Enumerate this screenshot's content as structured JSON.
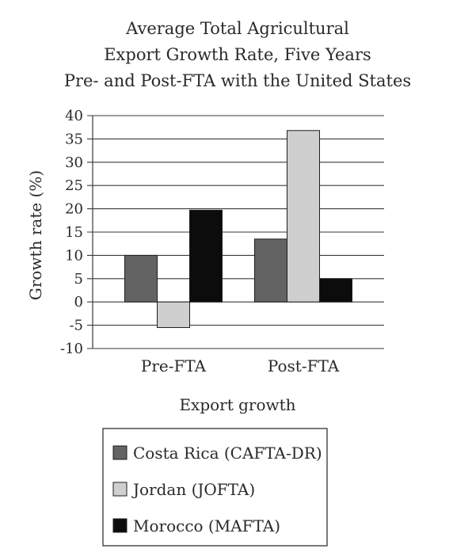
{
  "chart_data": {
    "type": "bar",
    "title": [
      "Average Total Agricultural",
      "Export Growth Rate, Five Years",
      "Pre- and Post-FTA with the United States"
    ],
    "xlabel": "Export growth",
    "ylabel": "Growth rate (%)",
    "categories": [
      "Pre-FTA",
      "Post-FTA"
    ],
    "series": [
      {
        "name": "Costa Rica (CAFTA-DR)",
        "values": [
          10,
          13.5
        ],
        "color": "#636363"
      },
      {
        "name": "Jordan (JOFTA)",
        "values": [
          -5.5,
          36.8
        ],
        "color": "#cfcfcf"
      },
      {
        "name": "Morocco (MAFTA)",
        "values": [
          19.7,
          5
        ],
        "color": "#0c0c0c"
      }
    ],
    "ylim": [
      -10,
      40
    ],
    "yticks": [
      "40",
      "35",
      "30",
      "25",
      "20",
      "15",
      "10",
      "5",
      "0",
      "-5",
      "-10"
    ],
    "grid": true,
    "legend_position": "bottom"
  }
}
